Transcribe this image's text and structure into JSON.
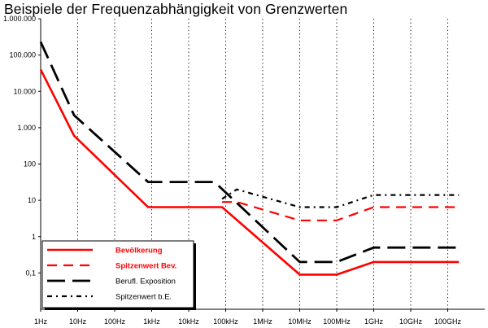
{
  "chart_data": {
    "type": "line",
    "title": "Beispiele der Frequenzabhängigkeit von Grenzwerten",
    "xlabel": "",
    "ylabel": "",
    "x_scale": "log10",
    "y_scale": "log10",
    "xlim": [
      1,
      1000000000000
    ],
    "ylim": [
      0.01,
      1000000
    ],
    "x_tick_values": [
      1,
      10,
      100,
      1000,
      10000,
      100000,
      1000000,
      10000000,
      100000000,
      1000000000,
      10000000000,
      100000000000
    ],
    "x_tick_labels": [
      "1Hz",
      "10Hz",
      "100Hz",
      "1kHz",
      "10kHz",
      "100kHz",
      "1MHz",
      "10MHz",
      "100MHz",
      "1GHz",
      "10GHz",
      "100GHz"
    ],
    "y_tick_values": [
      1000000,
      100000,
      10000,
      1000,
      100,
      10,
      1,
      0.1
    ],
    "y_tick_labels": [
      "1.000.000",
      "100.000",
      "10.000",
      "1.000",
      "100",
      "10",
      "1",
      "0,1"
    ],
    "grid": "vertical dashed",
    "legend_position": "bottom-left",
    "series": [
      {
        "name": "Bevölkerung",
        "color": "#ff0000",
        "style": "solid",
        "x": [
          1,
          8,
          800,
          80000,
          10000000,
          100000000,
          1000000000,
          200000000000
        ],
        "y": [
          40000,
          600,
          6.5,
          6.5,
          0.09,
          0.09,
          0.2,
          0.2
        ]
      },
      {
        "name": "Spitzenwert Bev.",
        "color": "#ff0000",
        "style": "dash",
        "x": [
          80000,
          200000,
          10000000,
          100000000,
          1000000000,
          200000000000
        ],
        "y": [
          9,
          9,
          2.8,
          2.8,
          6.5,
          6.5
        ]
      },
      {
        "name": "Berufl. Exposition",
        "color": "#000000",
        "style": "longdash",
        "x": [
          1,
          8,
          800,
          50000,
          10000000,
          100000000,
          1000000000,
          200000000000
        ],
        "y": [
          230000,
          2200,
          32,
          32,
          0.2,
          0.2,
          0.5,
          0.5
        ]
      },
      {
        "name": "Spitzenwert b.E.",
        "color": "#000000",
        "style": "dashdot",
        "x": [
          80000,
          200000,
          10000000,
          100000000,
          1000000000,
          200000000000
        ],
        "y": [
          11,
          20,
          6.5,
          6.5,
          14,
          14
        ]
      }
    ]
  }
}
